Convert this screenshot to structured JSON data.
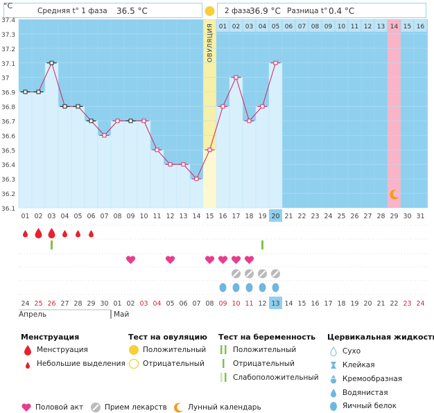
{
  "chart_data": {
    "type": "line",
    "title": "",
    "ylabel": "°C",
    "ylim": [
      36.1,
      37.4
    ],
    "yticks": [
      "36.1",
      "36.2",
      "36.3",
      "36.4",
      "36.5",
      "36.6",
      "36.7",
      "36.8",
      "36.9",
      "37",
      "37.1",
      "37.2",
      "37.3",
      "37.4"
    ],
    "cycle_days": [
      "01",
      "02",
      "03",
      "04",
      "05",
      "06",
      "07",
      "08",
      "09",
      "10",
      "11",
      "12",
      "13",
      "14",
      "15",
      "16",
      "17",
      "18",
      "19",
      "20",
      "21",
      "22",
      "23",
      "24",
      "25",
      "26",
      "27",
      "28",
      "29",
      "30",
      "31"
    ],
    "temperatures": [
      36.9,
      36.9,
      37.1,
      36.8,
      36.8,
      36.7,
      36.6,
      36.7,
      36.7,
      36.7,
      36.5,
      36.4,
      36.4,
      36.3,
      36.5,
      36.8,
      37.0,
      36.7,
      36.8,
      37.1
    ],
    "temp_marker": [
      "black",
      "black",
      "black",
      "black",
      "black",
      "black",
      "red",
      "red",
      "black",
      "red",
      "red",
      "red",
      "red",
      "red",
      "red",
      "red",
      "red",
      "red",
      "red",
      "red"
    ],
    "today_index": 19,
    "ovulation_index": 14,
    "ovulation_label": "ОВУЛЯЦИЯ",
    "phase2_days": [
      "01",
      "02",
      "03",
      "04",
      "05",
      "06",
      "07",
      "08",
      "09",
      "10",
      "11",
      "12",
      "13",
      "14",
      "15",
      "16"
    ],
    "phase2_highlight_index": 13,
    "calendar_dates": [
      "24",
      "25",
      "26",
      "27",
      "28",
      "29",
      "30",
      "01",
      "02",
      "03",
      "04",
      "05",
      "06",
      "07",
      "08",
      "09",
      "10",
      "11",
      "12",
      "13",
      "14",
      "15",
      "16",
      "17",
      "18",
      "19",
      "20",
      "21",
      "22",
      "23",
      "24"
    ],
    "calendar_red": [
      1,
      2,
      9,
      10,
      15,
      16,
      17,
      29,
      30
    ],
    "calendar_pink": [
      15,
      16,
      17
    ],
    "months": {
      "april": "Апрель",
      "may": "Май"
    },
    "menstruation": [
      {
        "day": 0,
        "size": "small"
      },
      {
        "day": 1,
        "size": "large"
      },
      {
        "day": 2,
        "size": "large"
      },
      {
        "day": 3,
        "size": "small"
      },
      {
        "day": 4,
        "size": "small"
      },
      {
        "day": 5,
        "size": "small"
      }
    ],
    "pregnancy_tests": [
      {
        "day": 2,
        "kind": "positive"
      },
      {
        "day": 18,
        "kind": "positive"
      }
    ],
    "intercourse_days": [
      8,
      11,
      14,
      15,
      16,
      17
    ],
    "medication_days": [
      16,
      17,
      18,
      19
    ],
    "fluid_days": [
      15,
      16,
      17,
      18,
      19
    ],
    "moon_day": 28
  },
  "header": {
    "phase1_label": "Средняя t° 1 фаза",
    "phase1_value": "36.5 °C",
    "phase2_label": "2 фаза",
    "phase2_value": "36.9 °C",
    "diff_label": "Разница t°",
    "diff_value": "0.4 °C"
  },
  "legend": {
    "menstruation_title": "Менструация",
    "menstruation": "Менструация",
    "spotting": "Небольшие выделения",
    "ovulation_test_title": "Тест на овуляцию",
    "ovulation_positive": "Положительный",
    "ovulation_negative": "Отрицательный",
    "pregnancy_test_title": "Тест на беременность",
    "pregnancy_positive": "Положительный",
    "pregnancy_negative": "Отрицательный",
    "pregnancy_weak": "Слабоположительный",
    "cervical_title": "Цервикальная жидкость",
    "dry": "Сухо",
    "sticky": "Клейкая",
    "creamy": "Кремообразная",
    "watery": "Водянистая",
    "egg_white": "Яичный белок",
    "intercourse": "Половой акт",
    "medication": "Прием лекарств",
    "lunar": "Лунный календарь"
  },
  "colors": {
    "chart_bg": "#8fd0ee",
    "fill": "#d8f0fc",
    "line": "#d0306a",
    "ovulation": "#f7f0a8",
    "highlight": "#f9b4c8",
    "blood": "#e8212e",
    "heart": "#ea3b8f",
    "green": "#7ec24c"
  }
}
